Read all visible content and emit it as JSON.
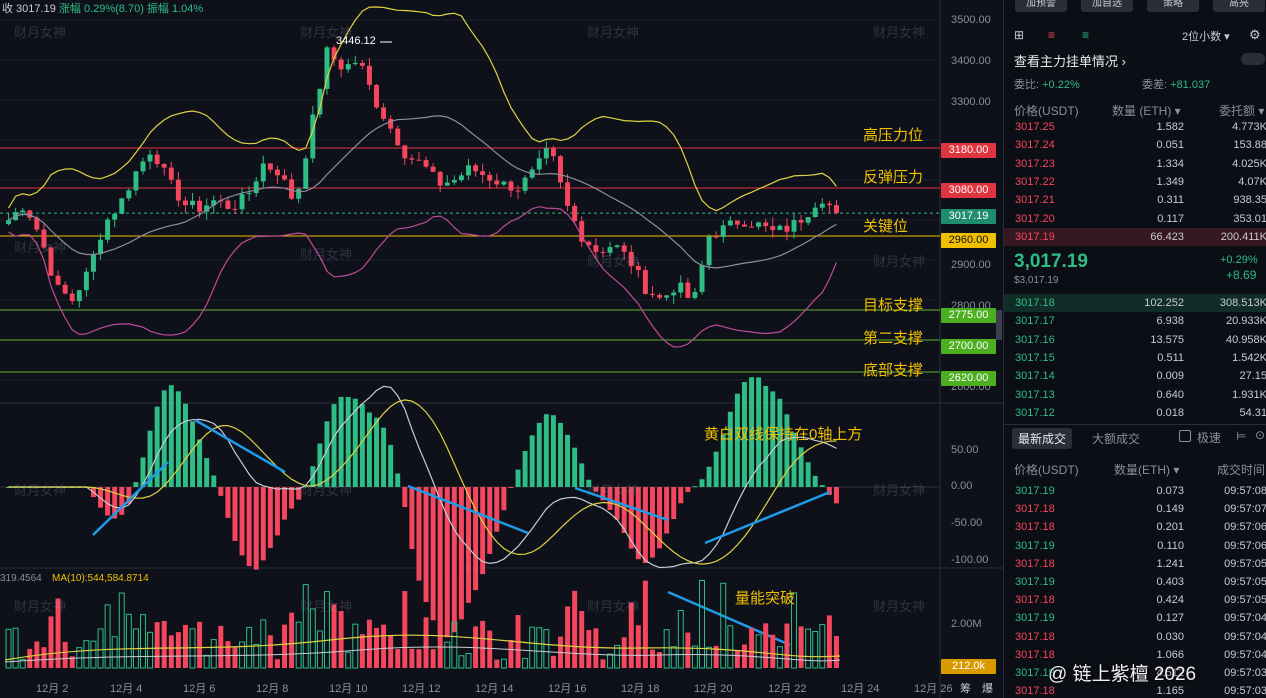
{
  "ticker": {
    "close": "收 3017.19",
    "change": "涨幅 0.29%(8.70)",
    "amplitude": "振幅 1.04%"
  },
  "price_axis": [
    "3500.00",
    "3400.00",
    "3300.00",
    "2900.00",
    "2800.00",
    "2600.00"
  ],
  "levels": [
    {
      "label": "高压力位",
      "price": "3180.00",
      "color": "#e0343f"
    },
    {
      "label": "反弹压力",
      "price": "3080.00",
      "color": "#e0343f"
    },
    {
      "label": "关键位",
      "price": "2960.00",
      "color": "#f0c000"
    },
    {
      "label": "目标支撑",
      "price": "2775.00",
      "color": "#5ab530"
    },
    {
      "label": "第二支撑",
      "price": "2700.00",
      "color": "#5ab530"
    },
    {
      "label": "底部支撑",
      "price": "2620.00",
      "color": "#5ab530"
    }
  ],
  "current_price_badge": "3017.19",
  "peak_label": "3446.12",
  "macd": {
    "axis": [
      "50.00",
      "0.00",
      "-50.00",
      "-100.00"
    ],
    "annotation": "黄白双线保持在0轴上方"
  },
  "volume": {
    "ma_left": "319.4564",
    "ma10": "MA(10):544,584.8714",
    "axis": "2.00M",
    "badge": "212.0k",
    "annotation": "量能突破"
  },
  "x_axis": [
    "12月 2",
    "12月 4",
    "12月 6",
    "12月 8",
    "12月 10",
    "12月 12",
    "12月 14",
    "12月 16",
    "12月 18",
    "12月 20",
    "12月 22",
    "12月 24",
    "12月 26",
    "筹",
    "爆"
  ],
  "watermark": "财月女神",
  "chart_data": {
    "type": "candlestick",
    "title": "",
    "xlabel": "",
    "ylabel": "",
    "ylim": [
      2600,
      3500
    ],
    "peak": 3446.12,
    "last": 3017.19,
    "path_points": [
      3000,
      3040,
      2960,
      2830,
      2800,
      2870,
      2990,
      3040,
      3120,
      3180,
      3100,
      3040,
      3030,
      3050,
      3030,
      3060,
      3140,
      3120,
      3040,
      3230,
      3420,
      3380,
      3400,
      3300,
      3230,
      3160,
      3140,
      3090,
      3100,
      3130,
      3110,
      3090,
      3080,
      3120,
      3180,
      3040,
      2960,
      2920,
      2940,
      2900,
      2830,
      2800,
      2840,
      2790,
      2960,
      2980,
      3000,
      2990,
      2970,
      2980,
      3010,
      3060,
      3017
    ]
  },
  "panel": {
    "top_buttons": [
      "加预警",
      "加自选",
      "策略",
      "高亮"
    ],
    "precision": "2位小数",
    "main_order": "查看主力挂单情况",
    "ratio_label": "委比:",
    "ratio_val": "+0.22%",
    "diff_label": "委差:",
    "diff_val": "+81.037",
    "col_headers": [
      "价格(USDT)",
      "数量 (ETH)",
      "委托额"
    ],
    "asks": [
      [
        "3017.25",
        "1.582",
        "4.773K"
      ],
      [
        "3017.24",
        "0.051",
        "153.88"
      ],
      [
        "3017.23",
        "1.334",
        "4.025K"
      ],
      [
        "3017.22",
        "1.349",
        "4.07K"
      ],
      [
        "3017.21",
        "0.311",
        "938.35"
      ],
      [
        "3017.20",
        "0.117",
        "353.01"
      ],
      [
        "3017.19",
        "66.423",
        "200.411K"
      ]
    ],
    "mid_price": "3,017.19",
    "mid_sub": "$3,017.19",
    "mid_pct": "+0.29%",
    "mid_chg": "+8.69",
    "bids": [
      [
        "3017.18",
        "102.252",
        "308.513K"
      ],
      [
        "3017.17",
        "6.938",
        "20.933K"
      ],
      [
        "3017.16",
        "13.575",
        "40.958K"
      ],
      [
        "3017.15",
        "0.511",
        "1.542K"
      ],
      [
        "3017.14",
        "0.009",
        "27.15"
      ],
      [
        "3017.13",
        "0.640",
        "1.931K"
      ],
      [
        "3017.12",
        "0.018",
        "54.31"
      ]
    ],
    "tabs": [
      "最新成交",
      "大额成交"
    ],
    "fast": "极速",
    "trade_headers": [
      "价格(USDT)",
      "数量(ETH)",
      "成交时间"
    ],
    "trades": [
      [
        "3017.19",
        "0.073",
        "09:57:08",
        "g"
      ],
      [
        "3017.18",
        "0.149",
        "09:57:07",
        "r"
      ],
      [
        "3017.18",
        "0.201",
        "09:57:06",
        "r"
      ],
      [
        "3017.19",
        "0.110",
        "09:57:06",
        "g"
      ],
      [
        "3017.18",
        "1.241",
        "09:57:05",
        "r"
      ],
      [
        "3017.19",
        "0.403",
        "09:57:05",
        "g"
      ],
      [
        "3017.18",
        "0.424",
        "09:57:05",
        "r"
      ],
      [
        "3017.19",
        "0.127",
        "09:57:04",
        "g"
      ],
      [
        "3017.18",
        "0.030",
        "09:57:04",
        "r"
      ],
      [
        "3017.18",
        "1.066",
        "09:57:04",
        "r"
      ],
      [
        "3017.19",
        "4.512",
        "09:57:03",
        "g"
      ],
      [
        "3017.18",
        "1.165",
        "09:57:03",
        "r"
      ]
    ],
    "footer_watermark": "@ 链上紫檀 2026"
  }
}
